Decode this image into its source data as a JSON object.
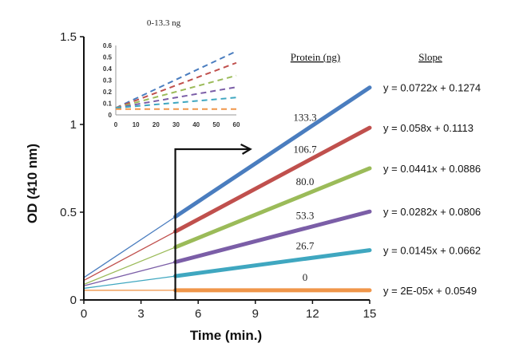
{
  "chart_data": [
    {
      "id": "main",
      "type": "line",
      "title": "",
      "xlabel": "Time (min.)",
      "ylabel": "OD (410 nm)",
      "xlim": [
        0,
        15
      ],
      "ylim": [
        0,
        1.5
      ],
      "xticks": [
        0,
        3,
        6,
        9,
        12,
        15
      ],
      "xtick_labels": [
        "0",
        "3",
        "6",
        "9",
        "12",
        "15"
      ],
      "yticks": [
        0,
        0.5,
        1,
        1.5
      ],
      "ytick_labels": [
        "0",
        "0.5",
        "1",
        "1.5"
      ],
      "grid": false,
      "highlight_from_x": 4.8,
      "legend_headers": {
        "protein": "Protein (ng)",
        "slope": "Slope"
      },
      "series": [
        {
          "name": "133.3",
          "color": "#4a7dbf",
          "slope": 0.0722,
          "intercept": 0.1274,
          "equation": "y = 0.0722x + 0.1274"
        },
        {
          "name": "106.7",
          "color": "#c0504d",
          "slope": 0.058,
          "intercept": 0.1113,
          "equation": "y = 0.058x + 0.1113"
        },
        {
          "name": "80.0",
          "color": "#9bbb59",
          "slope": 0.0441,
          "intercept": 0.0886,
          "equation": "y = 0.0441x + 0.0886"
        },
        {
          "name": "53.3",
          "color": "#7b5ea7",
          "slope": 0.0282,
          "intercept": 0.0806,
          "equation": "y = 0.0282x + 0.0806"
        },
        {
          "name": "26.7",
          "color": "#3fa7c0",
          "slope": 0.0145,
          "intercept": 0.0662,
          "equation": "y = 0.0145x + 0.0662"
        },
        {
          "name": "0",
          "color": "#f0964a",
          "slope": 2e-05,
          "intercept": 0.0549,
          "equation": "y = 2E-05x + 0.0549"
        }
      ]
    },
    {
      "id": "inset",
      "type": "line",
      "title": "0-13.3 ng",
      "xlabel": "",
      "ylabel": "",
      "xlim": [
        0,
        60
      ],
      "ylim": [
        0,
        0.6
      ],
      "xticks": [
        0,
        10,
        20,
        30,
        40,
        50,
        60
      ],
      "xtick_labels": [
        "0",
        "10",
        "20",
        "30",
        "40",
        "50",
        "60"
      ],
      "yticks": [
        0,
        0.1,
        0.2,
        0.3,
        0.4,
        0.5,
        0.6
      ],
      "ytick_labels": [
        "0",
        "0.1",
        "0.2",
        "0.3",
        "0.4",
        "0.5",
        "0.6"
      ],
      "grid": false,
      "line_style": "dashed",
      "series": [
        {
          "color": "#4a7dbf",
          "x": [
            0,
            60
          ],
          "y": [
            0.06,
            0.55
          ]
        },
        {
          "color": "#c0504d",
          "x": [
            0,
            60
          ],
          "y": [
            0.06,
            0.45
          ]
        },
        {
          "color": "#9bbb59",
          "x": [
            0,
            60
          ],
          "y": [
            0.06,
            0.34
          ]
        },
        {
          "color": "#7b5ea7",
          "x": [
            0,
            60
          ],
          "y": [
            0.06,
            0.24
          ]
        },
        {
          "color": "#3fa7c0",
          "x": [
            0,
            60
          ],
          "y": [
            0.06,
            0.15
          ]
        },
        {
          "color": "#f0964a",
          "x": [
            0,
            60
          ],
          "y": [
            0.05,
            0.05
          ]
        }
      ]
    }
  ]
}
